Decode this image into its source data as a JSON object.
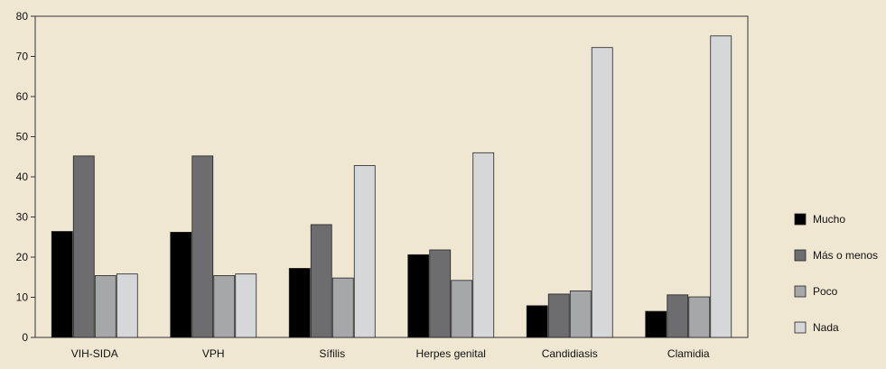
{
  "chart_data": {
    "type": "bar",
    "title": "",
    "xlabel": "",
    "ylabel": "",
    "ylim": [
      0,
      80
    ],
    "yticks": [
      0,
      10,
      20,
      30,
      40,
      50,
      60,
      70,
      80
    ],
    "grid": false,
    "legend_position": "right",
    "categories": [
      "VIH-SIDA",
      "VPH",
      "Sífilis",
      "Herpes genital",
      "Candidiasis",
      "Clamidia"
    ],
    "series": [
      {
        "name": "Mucho",
        "color": "#000000",
        "values": [
          26.4,
          26.2,
          17.2,
          20.6,
          7.9,
          6.5
        ]
      },
      {
        "name": "Más o menos",
        "color": "#6d6d6f",
        "values": [
          45.2,
          45.2,
          28.1,
          21.8,
          10.8,
          10.6
        ]
      },
      {
        "name": "Poco",
        "color": "#a6a7a9",
        "values": [
          15.4,
          15.4,
          14.8,
          14.2,
          11.6,
          10.1
        ]
      },
      {
        "name": "Nada",
        "color": "#d6d7d9",
        "values": [
          15.8,
          15.8,
          42.8,
          46.0,
          72.2,
          75.1
        ]
      }
    ]
  }
}
